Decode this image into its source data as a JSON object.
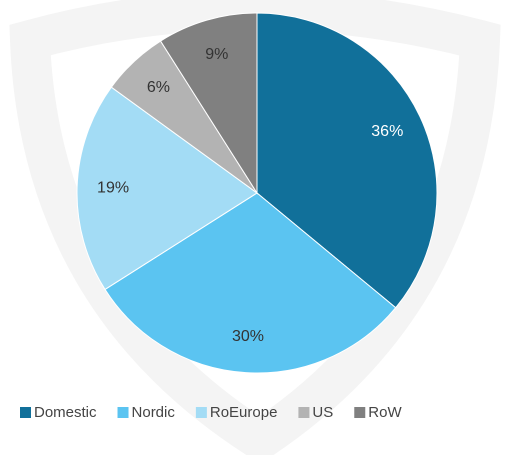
{
  "chart_data": {
    "type": "pie",
    "categories": [
      "Domestic",
      "Nordic",
      "RoEurope",
      "US",
      "RoW"
    ],
    "values": [
      36,
      30,
      19,
      6,
      9
    ],
    "value_labels": [
      "36%",
      "30%",
      "19%",
      "6%",
      "9%"
    ],
    "colors": [
      "#11709a",
      "#5bc4f1",
      "#a3dcf5",
      "#b3b3b3",
      "#808080"
    ],
    "legend": "bottom"
  }
}
